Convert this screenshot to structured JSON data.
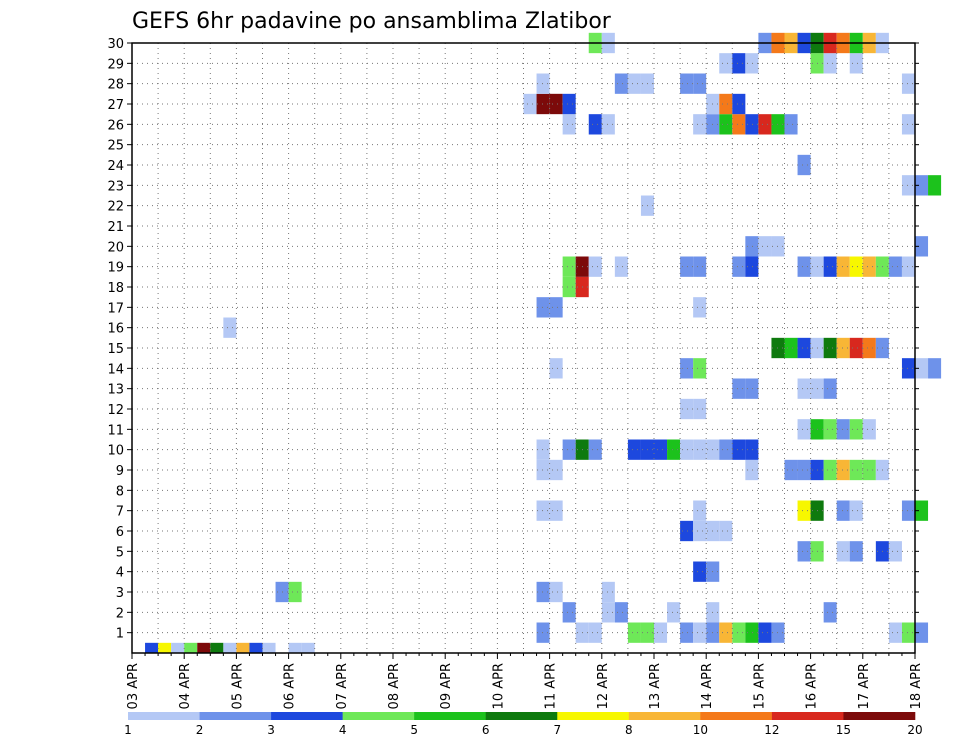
{
  "chart_data": {
    "type": "heatmap",
    "title": "GEFS 6hr padavine po ansamblima Zlatibor",
    "xlabel": "",
    "ylabel": "",
    "x_ticks": [
      "03 APR",
      "04 APR",
      "05 APR",
      "06 APR",
      "07 APR",
      "08 APR",
      "09 APR",
      "10 APR",
      "11 APR",
      "12 APR",
      "13 APR",
      "14 APR",
      "15 APR",
      "16 APR",
      "17 APR",
      "18 APR"
    ],
    "y_ticks": [
      "1",
      "2",
      "3",
      "4",
      "5",
      "6",
      "7",
      "8",
      "9",
      "10",
      "11",
      "12",
      "13",
      "14",
      "15",
      "16",
      "17",
      "18",
      "19",
      "20",
      "21",
      "22",
      "23",
      "24",
      "25",
      "26",
      "27",
      "28",
      "29",
      "30"
    ],
    "xlim_days": [
      0,
      15
    ],
    "ylim_members": [
      0,
      30
    ],
    "steps_per_day": 4,
    "grid": "dotted",
    "colorbar": {
      "placement": "bottom",
      "labels": [
        "1",
        "2",
        "3",
        "4",
        "5",
        "6",
        "7",
        "8",
        "10",
        "12",
        "15",
        "20"
      ],
      "colors": [
        "#b4c8f5",
        "#6e92ea",
        "#1d48de",
        "#6ee858",
        "#1cc21c",
        "#0e7a0e",
        "#f7f700",
        "#f8b636",
        "#f4791a",
        "#d8281e",
        "#7c0a0a"
      ]
    },
    "cells": [
      [
        -1,
        0,
        1,
        "#1d48de"
      ],
      [
        -1,
        0,
        2,
        "#f7f700"
      ],
      [
        -1,
        0,
        3,
        "#b4c8f5"
      ],
      [
        -1,
        0,
        4,
        "#6ee858"
      ],
      [
        -1,
        0,
        5,
        "#7c0a0a"
      ],
      [
        -1,
        0,
        6,
        "#0e7a0e"
      ],
      [
        -1,
        0,
        7,
        "#b4c8f5"
      ],
      [
        -1,
        0,
        8,
        "#f8b636"
      ],
      [
        -1,
        0,
        9,
        "#1d48de"
      ],
      [
        -1,
        0,
        10,
        "#b4c8f5"
      ],
      [
        -1,
        0,
        12,
        "#b4c8f5"
      ],
      [
        -1,
        0,
        13,
        "#b4c8f5"
      ],
      [
        1,
        7,
        3,
        "#6e92ea"
      ],
      [
        1,
        8,
        2,
        "#b4c8f5"
      ],
      [
        1,
        8,
        3,
        "#b4c8f5"
      ],
      [
        1,
        9,
        2,
        "#6ee858"
      ],
      [
        1,
        9,
        3,
        "#6ee858"
      ],
      [
        1,
        10,
        0,
        "#b4c8f5"
      ],
      [
        1,
        10,
        2,
        "#6e92ea"
      ],
      [
        1,
        10,
        3,
        "#b4c8f5"
      ],
      [
        1,
        11,
        0,
        "#6e92ea"
      ],
      [
        1,
        11,
        1,
        "#f8b636"
      ],
      [
        1,
        11,
        2,
        "#6ee858"
      ],
      [
        1,
        11,
        3,
        "#1cc21c"
      ],
      [
        1,
        12,
        0,
        "#1d48de"
      ],
      [
        1,
        12,
        1,
        "#6e92ea"
      ],
      [
        1,
        14,
        2,
        "#b4c8f5"
      ],
      [
        1,
        14,
        3,
        "#6ee858"
      ],
      [
        1,
        15,
        0,
        "#6e92ea"
      ],
      [
        2,
        8,
        1,
        "#6e92ea"
      ],
      [
        2,
        9,
        0,
        "#b4c8f5"
      ],
      [
        2,
        9,
        1,
        "#6e92ea"
      ],
      [
        2,
        10,
        1,
        "#b4c8f5"
      ],
      [
        2,
        11,
        0,
        "#b4c8f5"
      ],
      [
        2,
        13,
        1,
        "#6e92ea"
      ],
      [
        3,
        2,
        3,
        "#6e92ea"
      ],
      [
        3,
        3,
        0,
        "#6ee858"
      ],
      [
        3,
        7,
        3,
        "#6e92ea"
      ],
      [
        3,
        8,
        0,
        "#b4c8f5"
      ],
      [
        3,
        9,
        0,
        "#b4c8f5"
      ],
      [
        4,
        10,
        3,
        "#1d48de"
      ],
      [
        4,
        11,
        0,
        "#6e92ea"
      ],
      [
        5,
        12,
        3,
        "#6e92ea"
      ],
      [
        5,
        13,
        0,
        "#6ee858"
      ],
      [
        5,
        13,
        2,
        "#b4c8f5"
      ],
      [
        5,
        13,
        3,
        "#6e92ea"
      ],
      [
        5,
        14,
        1,
        "#1d48de"
      ],
      [
        5,
        14,
        2,
        "#b4c8f5"
      ],
      [
        6,
        10,
        2,
        "#1d48de"
      ],
      [
        6,
        10,
        3,
        "#b4c8f5"
      ],
      [
        6,
        11,
        0,
        "#b4c8f5"
      ],
      [
        6,
        11,
        1,
        "#b4c8f5"
      ],
      [
        7,
        7,
        3,
        "#b4c8f5"
      ],
      [
        7,
        8,
        0,
        "#b4c8f5"
      ],
      [
        7,
        10,
        3,
        "#b4c8f5"
      ],
      [
        7,
        12,
        3,
        "#f7f700"
      ],
      [
        7,
        13,
        0,
        "#0e7a0e"
      ],
      [
        7,
        13,
        2,
        "#6e92ea"
      ],
      [
        7,
        13,
        3,
        "#b4c8f5"
      ],
      [
        7,
        14,
        3,
        "#6e92ea"
      ],
      [
        7,
        15,
        0,
        "#1cc21c"
      ],
      [
        9,
        7,
        3,
        "#b4c8f5"
      ],
      [
        9,
        8,
        0,
        "#b4c8f5"
      ],
      [
        9,
        11,
        3,
        "#b4c8f5"
      ],
      [
        9,
        12,
        2,
        "#6e92ea"
      ],
      [
        9,
        12,
        3,
        "#6e92ea"
      ],
      [
        9,
        13,
        0,
        "#1d48de"
      ],
      [
        9,
        13,
        1,
        "#6ee858"
      ],
      [
        9,
        13,
        2,
        "#f8b636"
      ],
      [
        9,
        13,
        3,
        "#6ee858"
      ],
      [
        9,
        14,
        0,
        "#6ee858"
      ],
      [
        9,
        14,
        1,
        "#b4c8f5"
      ],
      [
        10,
        7,
        3,
        "#b4c8f5"
      ],
      [
        10,
        8,
        1,
        "#6e92ea"
      ],
      [
        10,
        8,
        2,
        "#0e7a0e"
      ],
      [
        10,
        8,
        3,
        "#6e92ea"
      ],
      [
        10,
        9,
        2,
        "#1d48de"
      ],
      [
        10,
        9,
        3,
        "#1d48de"
      ],
      [
        10,
        10,
        0,
        "#1d48de"
      ],
      [
        10,
        10,
        1,
        "#1cc21c"
      ],
      [
        10,
        10,
        2,
        "#b4c8f5"
      ],
      [
        10,
        10,
        3,
        "#b4c8f5"
      ],
      [
        10,
        11,
        0,
        "#b4c8f5"
      ],
      [
        10,
        11,
        1,
        "#6e92ea"
      ],
      [
        10,
        11,
        2,
        "#1d48de"
      ],
      [
        10,
        11,
        3,
        "#1d48de"
      ],
      [
        11,
        12,
        3,
        "#b4c8f5"
      ],
      [
        11,
        13,
        0,
        "#1cc21c"
      ],
      [
        11,
        13,
        1,
        "#6ee858"
      ],
      [
        11,
        13,
        2,
        "#6e92ea"
      ],
      [
        11,
        13,
        3,
        "#6ee858"
      ],
      [
        11,
        14,
        0,
        "#b4c8f5"
      ],
      [
        12,
        10,
        2,
        "#b4c8f5"
      ],
      [
        12,
        10,
        3,
        "#b4c8f5"
      ],
      [
        13,
        11,
        2,
        "#6e92ea"
      ],
      [
        13,
        11,
        3,
        "#6e92ea"
      ],
      [
        13,
        12,
        3,
        "#b4c8f5"
      ],
      [
        13,
        13,
        0,
        "#b4c8f5"
      ],
      [
        13,
        13,
        1,
        "#6e92ea"
      ],
      [
        14,
        8,
        0,
        "#b4c8f5"
      ],
      [
        14,
        10,
        2,
        "#6e92ea"
      ],
      [
        14,
        10,
        3,
        "#6ee858"
      ],
      [
        14,
        14,
        3,
        "#1d48de"
      ],
      [
        14,
        15,
        0,
        "#b4c8f5"
      ],
      [
        14,
        15,
        1,
        "#6e92ea"
      ],
      [
        15,
        12,
        1,
        "#0e7a0e"
      ],
      [
        15,
        12,
        2,
        "#1cc21c"
      ],
      [
        15,
        12,
        3,
        "#1d48de"
      ],
      [
        15,
        13,
        0,
        "#b4c8f5"
      ],
      [
        15,
        13,
        1,
        "#0e7a0e"
      ],
      [
        15,
        13,
        2,
        "#f8b636"
      ],
      [
        15,
        13,
        3,
        "#d8281e"
      ],
      [
        15,
        14,
        0,
        "#f4791a"
      ],
      [
        15,
        14,
        1,
        "#6e92ea"
      ],
      [
        16,
        1,
        3,
        "#b4c8f5"
      ],
      [
        17,
        7,
        3,
        "#6e92ea"
      ],
      [
        17,
        8,
        0,
        "#6e92ea"
      ],
      [
        17,
        10,
        3,
        "#b4c8f5"
      ],
      [
        18,
        8,
        1,
        "#6ee858"
      ],
      [
        18,
        8,
        2,
        "#d8281e"
      ],
      [
        19,
        8,
        1,
        "#6ee858"
      ],
      [
        19,
        8,
        2,
        "#7c0a0a"
      ],
      [
        19,
        8,
        3,
        "#b4c8f5"
      ],
      [
        19,
        9,
        1,
        "#b4c8f5"
      ],
      [
        19,
        10,
        2,
        "#6e92ea"
      ],
      [
        19,
        10,
        3,
        "#6e92ea"
      ],
      [
        19,
        11,
        2,
        "#6e92ea"
      ],
      [
        19,
        11,
        3,
        "#1d48de"
      ],
      [
        19,
        12,
        3,
        "#6e92ea"
      ],
      [
        19,
        13,
        0,
        "#b4c8f5"
      ],
      [
        19,
        13,
        1,
        "#1d48de"
      ],
      [
        19,
        13,
        2,
        "#f8b636"
      ],
      [
        19,
        13,
        3,
        "#f7f700"
      ],
      [
        19,
        14,
        0,
        "#f8b636"
      ],
      [
        19,
        14,
        1,
        "#6ee858"
      ],
      [
        19,
        14,
        2,
        "#6e92ea"
      ],
      [
        19,
        14,
        3,
        "#b4c8f5"
      ],
      [
        20,
        11,
        3,
        "#6e92ea"
      ],
      [
        20,
        12,
        0,
        "#b4c8f5"
      ],
      [
        20,
        12,
        1,
        "#b4c8f5"
      ],
      [
        20,
        15,
        0,
        "#6e92ea"
      ],
      [
        22,
        9,
        3,
        "#b4c8f5"
      ],
      [
        23,
        14,
        3,
        "#b4c8f5"
      ],
      [
        23,
        15,
        0,
        "#6e92ea"
      ],
      [
        23,
        15,
        1,
        "#1cc21c"
      ],
      [
        24,
        12,
        3,
        "#6e92ea"
      ],
      [
        26,
        8,
        1,
        "#b4c8f5"
      ],
      [
        26,
        8,
        3,
        "#1d48de"
      ],
      [
        26,
        9,
        0,
        "#b4c8f5"
      ],
      [
        26,
        10,
        3,
        "#b4c8f5"
      ],
      [
        26,
        11,
        0,
        "#6e92ea"
      ],
      [
        26,
        11,
        1,
        "#1cc21c"
      ],
      [
        26,
        11,
        2,
        "#f4791a"
      ],
      [
        26,
        11,
        3,
        "#1d48de"
      ],
      [
        26,
        12,
        0,
        "#d8281e"
      ],
      [
        26,
        12,
        1,
        "#1cc21c"
      ],
      [
        26,
        12,
        2,
        "#6e92ea"
      ],
      [
        26,
        14,
        3,
        "#b4c8f5"
      ],
      [
        27,
        7,
        2,
        "#b4c8f5"
      ],
      [
        27,
        7,
        3,
        "#7c0a0a"
      ],
      [
        27,
        8,
        0,
        "#7c0a0a"
      ],
      [
        27,
        8,
        1,
        "#1d48de"
      ],
      [
        27,
        11,
        0,
        "#b4c8f5"
      ],
      [
        27,
        11,
        1,
        "#f4791a"
      ],
      [
        27,
        11,
        2,
        "#1d48de"
      ],
      [
        28,
        7,
        3,
        "#b4c8f5"
      ],
      [
        28,
        9,
        1,
        "#6e92ea"
      ],
      [
        28,
        9,
        2,
        "#b4c8f5"
      ],
      [
        28,
        9,
        3,
        "#b4c8f5"
      ],
      [
        28,
        10,
        2,
        "#6e92ea"
      ],
      [
        28,
        10,
        3,
        "#6e92ea"
      ],
      [
        28,
        14,
        3,
        "#b4c8f5"
      ],
      [
        29,
        11,
        1,
        "#b4c8f5"
      ],
      [
        29,
        11,
        2,
        "#1d48de"
      ],
      [
        29,
        11,
        3,
        "#b4c8f5"
      ],
      [
        29,
        13,
        0,
        "#6ee858"
      ],
      [
        29,
        13,
        1,
        "#b4c8f5"
      ],
      [
        29,
        13,
        3,
        "#b4c8f5"
      ],
      [
        30,
        8,
        3,
        "#6ee858"
      ],
      [
        30,
        9,
        0,
        "#b4c8f5"
      ],
      [
        30,
        12,
        0,
        "#6e92ea"
      ],
      [
        30,
        12,
        1,
        "#f4791a"
      ],
      [
        30,
        12,
        2,
        "#f8b636"
      ],
      [
        30,
        12,
        3,
        "#1d48de"
      ],
      [
        30,
        13,
        0,
        "#0e7a0e"
      ],
      [
        30,
        13,
        1,
        "#d8281e"
      ],
      [
        30,
        13,
        2,
        "#f4791a"
      ],
      [
        30,
        13,
        3,
        "#1cc21c"
      ],
      [
        30,
        14,
        0,
        "#f8b636"
      ],
      [
        30,
        14,
        1,
        "#b4c8f5"
      ]
    ]
  }
}
